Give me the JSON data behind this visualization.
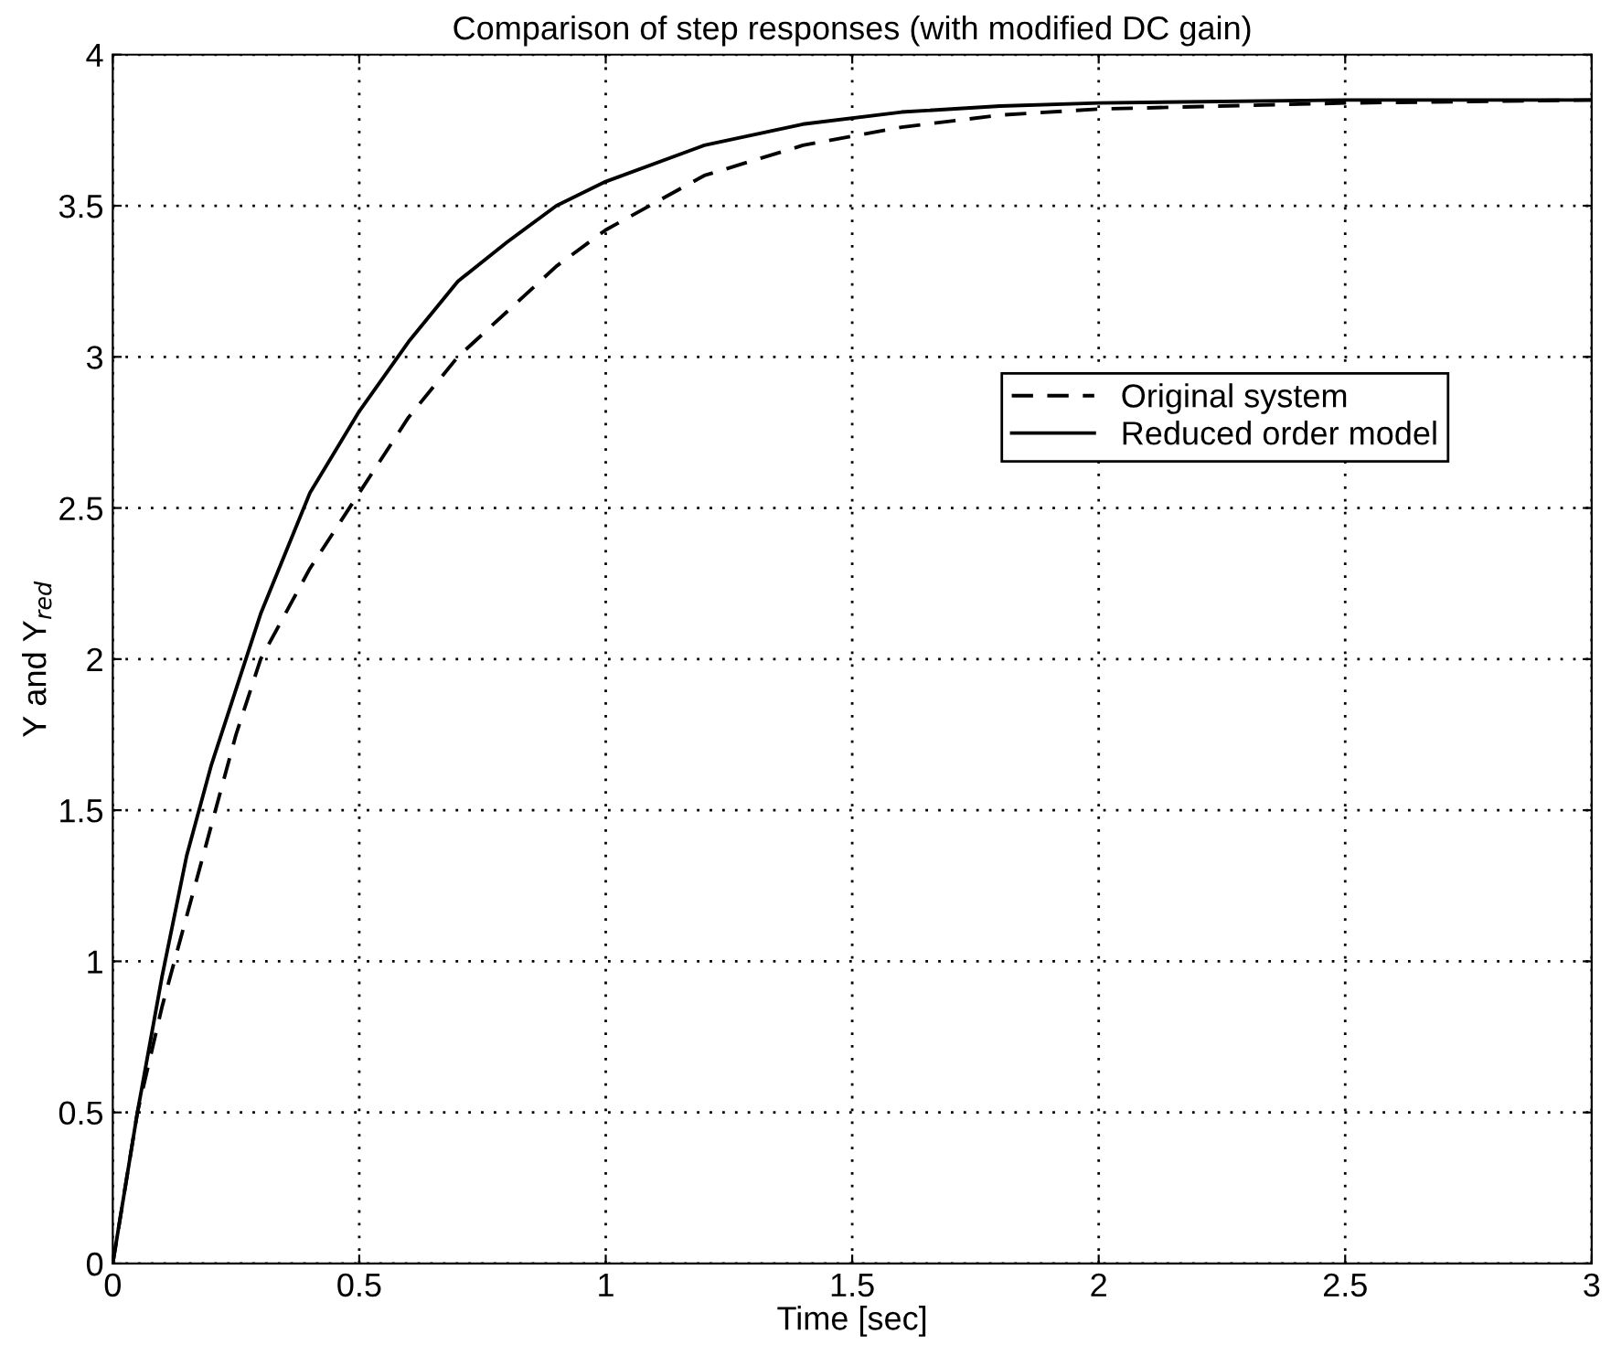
{
  "chart_data": {
    "type": "line",
    "title": "Comparison of step responses (with modified DC gain)",
    "xlabel": "Time [sec]",
    "ylabel": "Y and Y$_{red}$",
    "x": [
      0,
      0.05,
      0.1,
      0.15,
      0.2,
      0.25,
      0.3,
      0.4,
      0.5,
      0.6,
      0.7,
      0.8,
      0.9,
      1.0,
      1.2,
      1.4,
      1.6,
      1.8,
      2.0,
      2.5,
      3.0
    ],
    "series": [
      {
        "name": "Original system",
        "color": "#000000",
        "line_style": "dashed",
        "values": [
          0,
          0.5,
          0.85,
          1.15,
          1.45,
          1.75,
          2.0,
          2.3,
          2.55,
          2.8,
          3.0,
          3.15,
          3.3,
          3.42,
          3.6,
          3.7,
          3.76,
          3.8,
          3.82,
          3.84,
          3.85
        ]
      },
      {
        "name": "Reduced order model",
        "color": "#000000",
        "line_style": "solid",
        "values": [
          0,
          0.5,
          0.95,
          1.35,
          1.65,
          1.9,
          2.15,
          2.55,
          2.82,
          3.05,
          3.25,
          3.38,
          3.5,
          3.58,
          3.7,
          3.77,
          3.81,
          3.83,
          3.84,
          3.85,
          3.85
        ]
      }
    ],
    "xlim": [
      0,
      3
    ],
    "ylim": [
      0,
      4
    ],
    "xticks": [
      0,
      0.5,
      1,
      1.5,
      2,
      2.5,
      3
    ],
    "yticks": [
      0,
      0.5,
      1,
      1.5,
      2,
      2.5,
      3,
      3.5,
      4
    ],
    "grid": true,
    "legend": "right",
    "marker": "none"
  }
}
